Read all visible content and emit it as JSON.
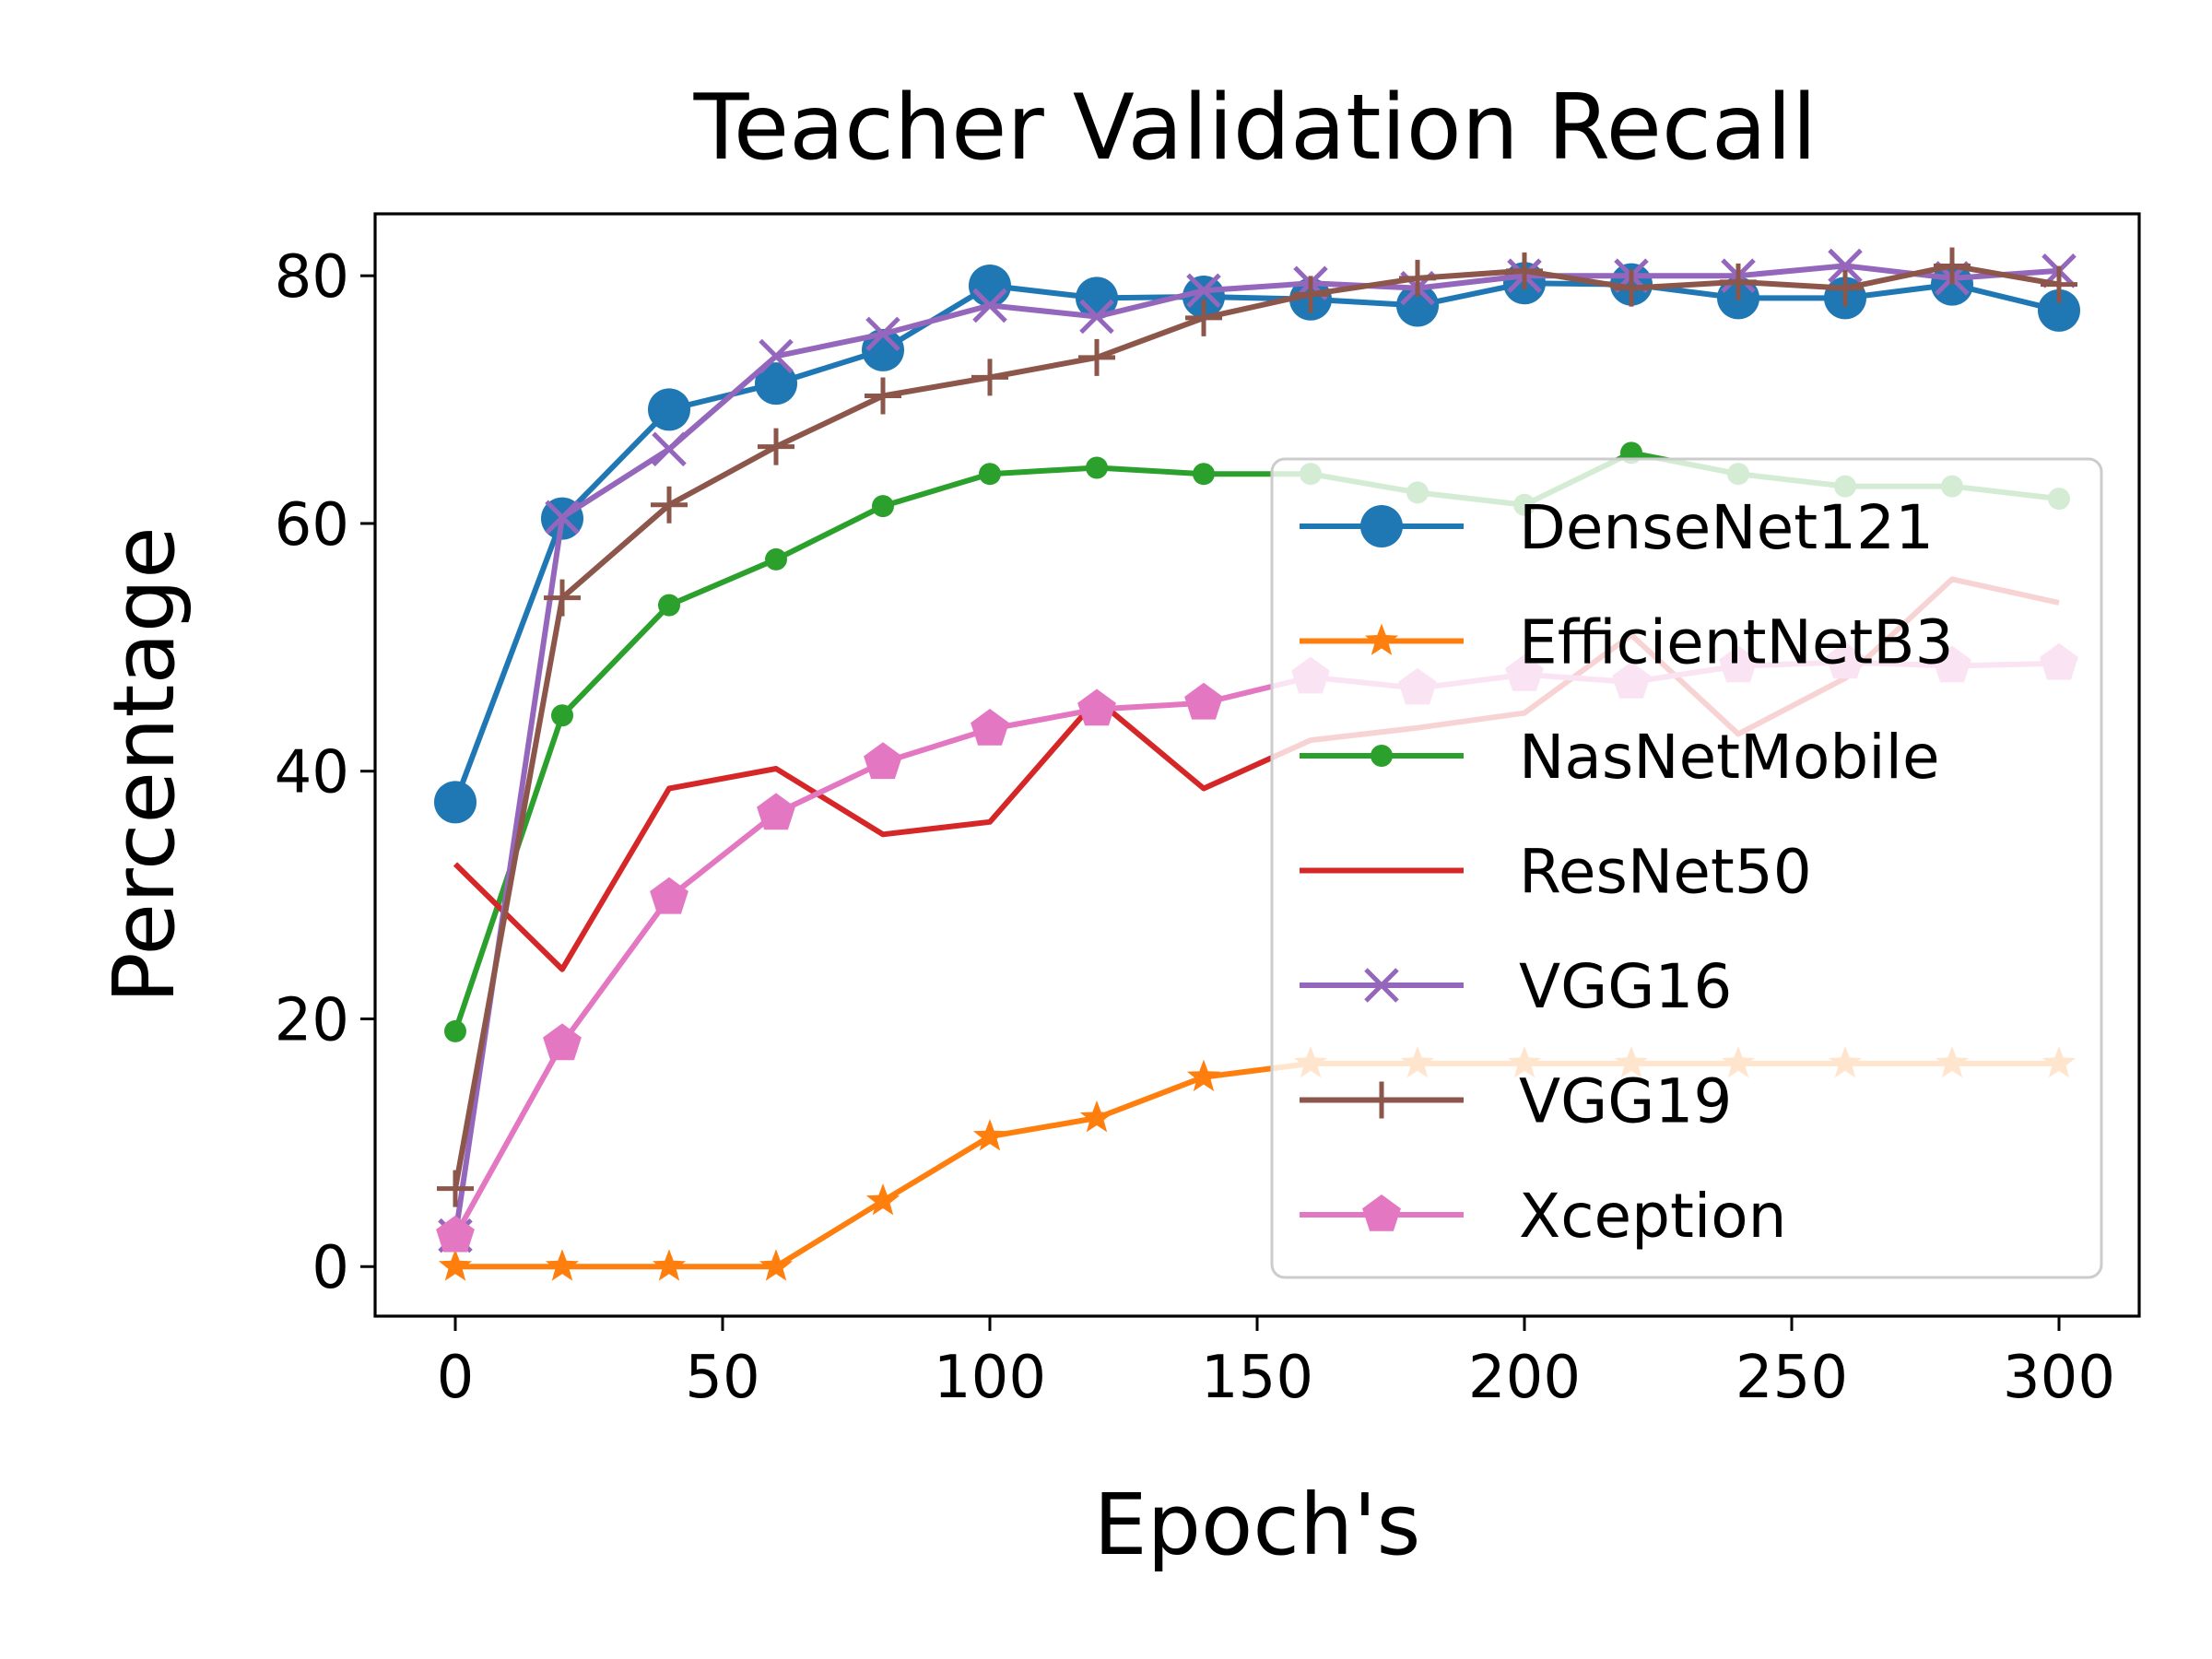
{
  "chart_data": {
    "type": "line",
    "title": "Teacher Validation Recall",
    "xlabel": "Epoch's",
    "ylabel": "Percentage",
    "x": [
      0,
      20,
      40,
      60,
      80,
      100,
      120,
      140,
      160,
      180,
      200,
      220,
      240,
      260,
      280,
      300
    ],
    "xlim": [
      -15,
      315
    ],
    "ylim": [
      -4,
      85
    ],
    "xticks": [
      0,
      50,
      100,
      150,
      200,
      250,
      300
    ],
    "yticks": [
      0,
      20,
      40,
      60,
      80
    ],
    "grid": false,
    "legend": "right",
    "series": [
      {
        "name": "DenseNet121",
        "color": "#1f77b4",
        "marker": "circle",
        "values": [
          37.5,
          60.4,
          69.2,
          71.3,
          74.0,
          79.2,
          78.2,
          78.3,
          78.1,
          77.6,
          79.4,
          79.3,
          78.2,
          78.2,
          79.3,
          77.2
        ]
      },
      {
        "name": "EfficientNetB3",
        "color": "#ff7f0e",
        "marker": "star",
        "values": [
          0,
          0,
          0,
          0,
          5.3,
          10.5,
          12.0,
          15.3,
          16.4,
          16.4,
          16.4,
          16.4,
          16.4,
          16.4,
          16.4,
          16.4
        ]
      },
      {
        "name": "NasNetMobile",
        "color": "#2ca02c",
        "marker": "point",
        "values": [
          19.0,
          44.5,
          53.4,
          57.1,
          61.4,
          64.0,
          64.5,
          64.0,
          64.0,
          62.5,
          61.5,
          65.7,
          64.0,
          63.0,
          63.0,
          62.0
        ]
      },
      {
        "name": "ResNet50",
        "color": "#d62728",
        "marker": "none",
        "values": [
          32.5,
          24.0,
          38.6,
          40.2,
          34.9,
          35.9,
          45.8,
          38.6,
          42.5,
          43.5,
          44.7,
          51.0,
          43.0,
          47.5,
          55.5,
          53.6
        ]
      },
      {
        "name": "VGG16",
        "color": "#9467bd",
        "marker": "x",
        "values": [
          2.5,
          60.5,
          66.0,
          73.5,
          75.3,
          77.6,
          76.7,
          78.8,
          79.4,
          79.0,
          80.0,
          80.0,
          80.0,
          80.8,
          79.8,
          80.4
        ]
      },
      {
        "name": "VGG19",
        "color": "#8c564b",
        "marker": "plus",
        "values": [
          6.3,
          54.0,
          61.5,
          66.2,
          70.3,
          71.8,
          73.4,
          76.6,
          78.5,
          79.8,
          80.4,
          79.0,
          79.5,
          79.0,
          80.8,
          79.3
        ]
      },
      {
        "name": "Xception",
        "color": "#e377c2",
        "marker": "pentagon",
        "values": [
          2.5,
          18.0,
          29.8,
          36.6,
          40.7,
          43.4,
          45.0,
          45.5,
          47.6,
          46.7,
          47.8,
          47.2,
          48.5,
          48.8,
          48.5,
          48.7
        ]
      }
    ]
  }
}
